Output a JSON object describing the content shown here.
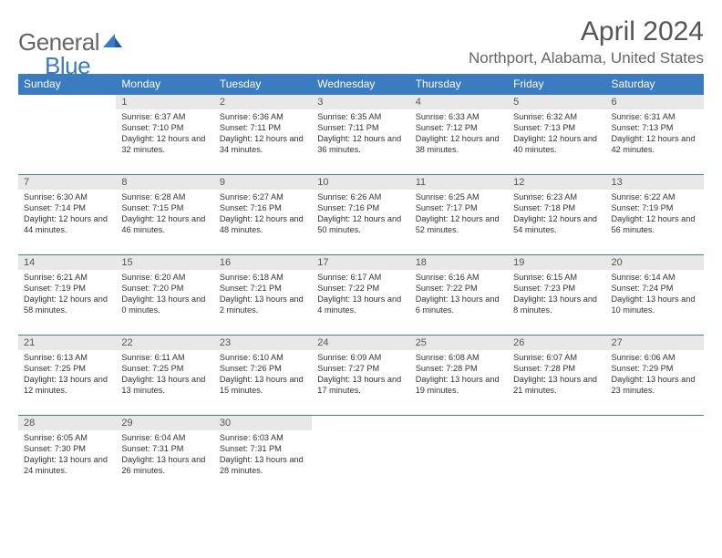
{
  "brand": {
    "part1": "General",
    "part2": "Blue"
  },
  "title": "April 2024",
  "location": "Northport, Alabama, United States",
  "colors": {
    "accent": "#3b7bbf",
    "daynum_bg": "#e8e8e8",
    "text": "#333333",
    "muted": "#666666",
    "bg": "#ffffff"
  },
  "dayHeaders": [
    "Sunday",
    "Monday",
    "Tuesday",
    "Wednesday",
    "Thursday",
    "Friday",
    "Saturday"
  ],
  "weeks": [
    [
      {
        "n": "",
        "sr": "",
        "ss": "",
        "dl": ""
      },
      {
        "n": "1",
        "sr": "6:37 AM",
        "ss": "7:10 PM",
        "dl": "12 hours and 32 minutes."
      },
      {
        "n": "2",
        "sr": "6:36 AM",
        "ss": "7:11 PM",
        "dl": "12 hours and 34 minutes."
      },
      {
        "n": "3",
        "sr": "6:35 AM",
        "ss": "7:11 PM",
        "dl": "12 hours and 36 minutes."
      },
      {
        "n": "4",
        "sr": "6:33 AM",
        "ss": "7:12 PM",
        "dl": "12 hours and 38 minutes."
      },
      {
        "n": "5",
        "sr": "6:32 AM",
        "ss": "7:13 PM",
        "dl": "12 hours and 40 minutes."
      },
      {
        "n": "6",
        "sr": "6:31 AM",
        "ss": "7:13 PM",
        "dl": "12 hours and 42 minutes."
      }
    ],
    [
      {
        "n": "7",
        "sr": "6:30 AM",
        "ss": "7:14 PM",
        "dl": "12 hours and 44 minutes."
      },
      {
        "n": "8",
        "sr": "6:28 AM",
        "ss": "7:15 PM",
        "dl": "12 hours and 46 minutes."
      },
      {
        "n": "9",
        "sr": "6:27 AM",
        "ss": "7:16 PM",
        "dl": "12 hours and 48 minutes."
      },
      {
        "n": "10",
        "sr": "6:26 AM",
        "ss": "7:16 PM",
        "dl": "12 hours and 50 minutes."
      },
      {
        "n": "11",
        "sr": "6:25 AM",
        "ss": "7:17 PM",
        "dl": "12 hours and 52 minutes."
      },
      {
        "n": "12",
        "sr": "6:23 AM",
        "ss": "7:18 PM",
        "dl": "12 hours and 54 minutes."
      },
      {
        "n": "13",
        "sr": "6:22 AM",
        "ss": "7:19 PM",
        "dl": "12 hours and 56 minutes."
      }
    ],
    [
      {
        "n": "14",
        "sr": "6:21 AM",
        "ss": "7:19 PM",
        "dl": "12 hours and 58 minutes."
      },
      {
        "n": "15",
        "sr": "6:20 AM",
        "ss": "7:20 PM",
        "dl": "13 hours and 0 minutes."
      },
      {
        "n": "16",
        "sr": "6:18 AM",
        "ss": "7:21 PM",
        "dl": "13 hours and 2 minutes."
      },
      {
        "n": "17",
        "sr": "6:17 AM",
        "ss": "7:22 PM",
        "dl": "13 hours and 4 minutes."
      },
      {
        "n": "18",
        "sr": "6:16 AM",
        "ss": "7:22 PM",
        "dl": "13 hours and 6 minutes."
      },
      {
        "n": "19",
        "sr": "6:15 AM",
        "ss": "7:23 PM",
        "dl": "13 hours and 8 minutes."
      },
      {
        "n": "20",
        "sr": "6:14 AM",
        "ss": "7:24 PM",
        "dl": "13 hours and 10 minutes."
      }
    ],
    [
      {
        "n": "21",
        "sr": "6:13 AM",
        "ss": "7:25 PM",
        "dl": "13 hours and 12 minutes."
      },
      {
        "n": "22",
        "sr": "6:11 AM",
        "ss": "7:25 PM",
        "dl": "13 hours and 13 minutes."
      },
      {
        "n": "23",
        "sr": "6:10 AM",
        "ss": "7:26 PM",
        "dl": "13 hours and 15 minutes."
      },
      {
        "n": "24",
        "sr": "6:09 AM",
        "ss": "7:27 PM",
        "dl": "13 hours and 17 minutes."
      },
      {
        "n": "25",
        "sr": "6:08 AM",
        "ss": "7:28 PM",
        "dl": "13 hours and 19 minutes."
      },
      {
        "n": "26",
        "sr": "6:07 AM",
        "ss": "7:28 PM",
        "dl": "13 hours and 21 minutes."
      },
      {
        "n": "27",
        "sr": "6:06 AM",
        "ss": "7:29 PM",
        "dl": "13 hours and 23 minutes."
      }
    ],
    [
      {
        "n": "28",
        "sr": "6:05 AM",
        "ss": "7:30 PM",
        "dl": "13 hours and 24 minutes."
      },
      {
        "n": "29",
        "sr": "6:04 AM",
        "ss": "7:31 PM",
        "dl": "13 hours and 26 minutes."
      },
      {
        "n": "30",
        "sr": "6:03 AM",
        "ss": "7:31 PM",
        "dl": "13 hours and 28 minutes."
      },
      {
        "n": "",
        "sr": "",
        "ss": "",
        "dl": ""
      },
      {
        "n": "",
        "sr": "",
        "ss": "",
        "dl": ""
      },
      {
        "n": "",
        "sr": "",
        "ss": "",
        "dl": ""
      },
      {
        "n": "",
        "sr": "",
        "ss": "",
        "dl": ""
      }
    ]
  ],
  "labels": {
    "sunrise": "Sunrise:",
    "sunset": "Sunset:",
    "daylight": "Daylight:"
  }
}
